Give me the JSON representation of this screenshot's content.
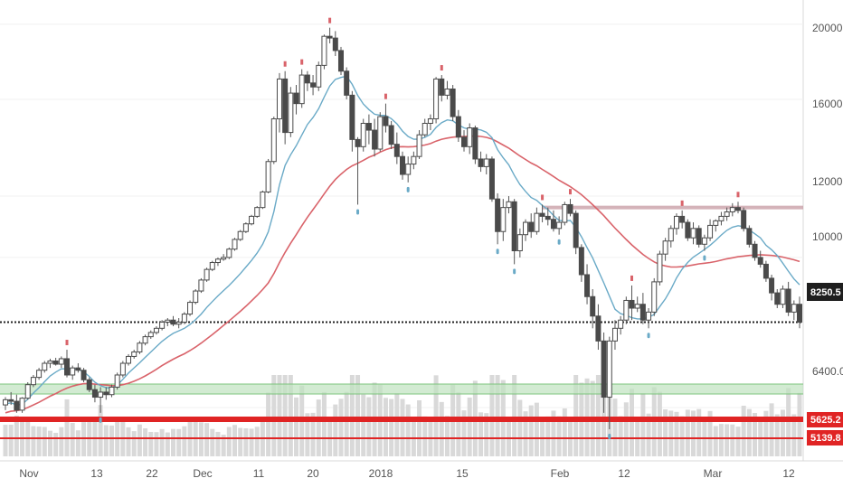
{
  "chart_data": {
    "type": "candlestick",
    "y_scale": "log",
    "ylim": [
      6000,
      21500
    ],
    "x_tick_labels": [
      "Nov",
      "13",
      "22",
      "Dec",
      "11",
      "20",
      "2018",
      "15",
      "Feb",
      "12",
      "Mar",
      "12"
    ],
    "y_tick_labels": [
      "20000.0",
      "16000.0",
      "12000.0",
      "10000.0",
      "6400.0"
    ],
    "y_tick_values": [
      20000,
      16000,
      12000,
      10000,
      6400
    ],
    "last_price": {
      "label": "8250.5",
      "value": 8250.5
    },
    "level_tags": [
      {
        "label": "5625.2"
      },
      {
        "label": "5139.8"
      }
    ],
    "resistance_level": 11600,
    "series": [
      {
        "name": "",
        "kind": "ohlc",
        "values": [
          [
            6450,
            6600,
            6350,
            6550
          ],
          [
            6550,
            6700,
            6450,
            6520
          ],
          [
            6520,
            6650,
            6300,
            6350
          ],
          [
            6350,
            6600,
            6300,
            6580
          ],
          [
            6580,
            6900,
            6550,
            6850
          ],
          [
            6850,
            7050,
            6800,
            7000
          ],
          [
            7000,
            7200,
            6950,
            7150
          ],
          [
            7150,
            7350,
            7100,
            7300
          ],
          [
            7300,
            7400,
            7200,
            7350
          ],
          [
            7350,
            7420,
            7250,
            7280
          ],
          [
            7280,
            7450,
            7200,
            7400
          ],
          [
            7400,
            7600,
            7000,
            7050
          ],
          [
            7050,
            7250,
            6950,
            7200
          ],
          [
            7200,
            7300,
            7100,
            7150
          ],
          [
            7150,
            7200,
            6900,
            6950
          ],
          [
            6950,
            7000,
            6700,
            6750
          ],
          [
            6750,
            6850,
            6500,
            6600
          ],
          [
            6600,
            6800,
            6300,
            6700
          ],
          [
            6700,
            6800,
            6550,
            6650
          ],
          [
            6650,
            6850,
            6600,
            6800
          ],
          [
            6800,
            7100,
            6750,
            7050
          ],
          [
            7050,
            7350,
            7000,
            7300
          ],
          [
            7300,
            7500,
            7250,
            7450
          ],
          [
            7450,
            7600,
            7400,
            7550
          ],
          [
            7550,
            7800,
            7500,
            7750
          ],
          [
            7750,
            7950,
            7700,
            7900
          ],
          [
            7900,
            8050,
            7850,
            8000
          ],
          [
            8000,
            8150,
            7950,
            8100
          ],
          [
            8100,
            8300,
            8050,
            8250
          ],
          [
            8250,
            8350,
            8150,
            8300
          ],
          [
            8300,
            8400,
            8150,
            8200
          ],
          [
            8200,
            8350,
            8100,
            8250
          ],
          [
            8250,
            8500,
            8200,
            8450
          ],
          [
            8450,
            8800,
            8400,
            8750
          ],
          [
            8750,
            9100,
            8700,
            9050
          ],
          [
            9050,
            9400,
            9000,
            9350
          ],
          [
            9350,
            9700,
            9300,
            9650
          ],
          [
            9650,
            9900,
            9600,
            9850
          ],
          [
            9850,
            10000,
            9750,
            9950
          ],
          [
            9950,
            10100,
            9900,
            10000
          ],
          [
            10000,
            10300,
            9950,
            10250
          ],
          [
            10250,
            10600,
            10200,
            10550
          ],
          [
            10550,
            10850,
            10500,
            10800
          ],
          [
            10800,
            11100,
            10750,
            11050
          ],
          [
            11050,
            11350,
            11000,
            11300
          ],
          [
            11300,
            11650,
            11250,
            11600
          ],
          [
            11600,
            12200,
            11550,
            12150
          ],
          [
            12150,
            13400,
            12100,
            13300
          ],
          [
            13300,
            15200,
            13200,
            15100
          ],
          [
            15100,
            17300,
            14500,
            17000
          ],
          [
            17000,
            17400,
            14000,
            14500
          ],
          [
            14500,
            16600,
            14300,
            16300
          ],
          [
            16300,
            16700,
            15300,
            15800
          ],
          [
            15800,
            17500,
            15600,
            17200
          ],
          [
            17200,
            17400,
            16400,
            16800
          ],
          [
            16800,
            17200,
            16200,
            16600
          ],
          [
            16600,
            17900,
            16400,
            17700
          ],
          [
            17700,
            19400,
            17500,
            19300
          ],
          [
            19300,
            19800,
            18900,
            19200
          ],
          [
            19200,
            19600,
            18200,
            18500
          ],
          [
            18500,
            18700,
            17200,
            17400
          ],
          [
            17400,
            17600,
            16000,
            16200
          ],
          [
            16200,
            16400,
            13700,
            14200
          ],
          [
            14200,
            14300,
            11700,
            13900
          ],
          [
            13900,
            15100,
            13700,
            14900
          ],
          [
            14900,
            15300,
            14000,
            14600
          ],
          [
            14600,
            15100,
            13500,
            13800
          ],
          [
            13800,
            15400,
            13700,
            15200
          ],
          [
            15200,
            15800,
            14500,
            14800
          ],
          [
            14800,
            15000,
            13800,
            14000
          ],
          [
            14000,
            14500,
            13200,
            13500
          ],
          [
            13500,
            13700,
            12600,
            12800
          ],
          [
            12800,
            13500,
            12500,
            13200
          ],
          [
            13200,
            13700,
            13000,
            13500
          ],
          [
            13500,
            14600,
            13400,
            14400
          ],
          [
            14400,
            15100,
            14300,
            14900
          ],
          [
            14900,
            15300,
            14600,
            15100
          ],
          [
            15100,
            17100,
            14900,
            17000
          ],
          [
            17000,
            17200,
            15900,
            16200
          ],
          [
            16200,
            16900,
            16000,
            16500
          ],
          [
            16500,
            16700,
            15000,
            15200
          ],
          [
            15200,
            15500,
            14100,
            14300
          ],
          [
            14300,
            14600,
            13700,
            13900
          ],
          [
            13900,
            14900,
            13600,
            14700
          ],
          [
            14700,
            14800,
            13200,
            13400
          ],
          [
            13400,
            13700,
            12900,
            13100
          ],
          [
            13100,
            13600,
            12800,
            13400
          ],
          [
            13400,
            13500,
            11800,
            11900
          ],
          [
            11900,
            12100,
            10400,
            10800
          ],
          [
            10800,
            11900,
            10500,
            11600
          ],
          [
            11600,
            12000,
            11400,
            11800
          ],
          [
            11800,
            11900,
            9800,
            10200
          ],
          [
            10200,
            10900,
            10000,
            10700
          ],
          [
            10700,
            11200,
            10500,
            11100
          ],
          [
            11100,
            11400,
            10600,
            10800
          ],
          [
            10800,
            11600,
            10700,
            11400
          ],
          [
            11400,
            11700,
            11100,
            11300
          ],
          [
            11300,
            11600,
            11000,
            11200
          ],
          [
            11200,
            11500,
            10800,
            10900
          ],
          [
            10900,
            11300,
            10700,
            11100
          ],
          [
            11100,
            11800,
            11000,
            11700
          ],
          [
            11700,
            11900,
            11300,
            11400
          ],
          [
            11400,
            11500,
            10100,
            10300
          ],
          [
            10300,
            10400,
            9300,
            9500
          ],
          [
            9500,
            9800,
            8700,
            8900
          ],
          [
            8900,
            9100,
            8100,
            8400
          ],
          [
            8400,
            8700,
            7600,
            7800
          ],
          [
            7800,
            8000,
            6300,
            6600
          ],
          [
            6600,
            7900,
            6000,
            7800
          ],
          [
            7800,
            8300,
            7600,
            8100
          ],
          [
            8100,
            8400,
            7950,
            8300
          ],
          [
            8300,
            8900,
            8200,
            8800
          ],
          [
            8800,
            9200,
            8300,
            8600
          ],
          [
            8600,
            8900,
            8500,
            8700
          ],
          [
            8700,
            9000,
            8200,
            8300
          ],
          [
            8300,
            8600,
            8100,
            8500
          ],
          [
            8500,
            9400,
            8400,
            9300
          ],
          [
            9300,
            10200,
            9200,
            10100
          ],
          [
            10100,
            10600,
            9900,
            10500
          ],
          [
            10500,
            11000,
            10300,
            10900
          ],
          [
            10900,
            11400,
            10700,
            11300
          ],
          [
            11300,
            11500,
            10900,
            11100
          ],
          [
            11100,
            11200,
            10500,
            10600
          ],
          [
            10600,
            11100,
            10400,
            10900
          ],
          [
            10900,
            11000,
            10300,
            10400
          ],
          [
            10400,
            10700,
            10200,
            10600
          ],
          [
            10600,
            11200,
            10500,
            11000
          ],
          [
            11000,
            11200,
            10800,
            11150
          ],
          [
            11150,
            11450,
            11000,
            11300
          ],
          [
            11300,
            11600,
            11150,
            11450
          ],
          [
            11450,
            11750,
            11300,
            11600
          ],
          [
            11600,
            11800,
            11400,
            11500
          ],
          [
            11500,
            11600,
            10800,
            10900
          ],
          [
            10900,
            11000,
            10300,
            10400
          ],
          [
            10400,
            10500,
            9900,
            10000
          ],
          [
            10000,
            10200,
            9700,
            9800
          ],
          [
            9800,
            9900,
            9300,
            9400
          ],
          [
            9400,
            9500,
            8800,
            9000
          ],
          [
            9000,
            9100,
            8600,
            8700
          ],
          [
            8700,
            9200,
            8600,
            9100
          ],
          [
            9100,
            9300,
            8400,
            8500
          ],
          [
            8500,
            8800,
            8300,
            8700
          ],
          [
            8700,
            8900,
            8100,
            8250
          ]
        ]
      },
      {
        "name": "",
        "kind": "line",
        "values": [
          6470,
          6490,
          6450,
          6460,
          6560,
          6680,
          6790,
          6910,
          7030,
          7110,
          7180,
          7180,
          7190,
          7170,
          7120,
          7020,
          6900,
          6830,
          6790,
          6780,
          6840,
          6960,
          7090,
          7200,
          7310,
          7430,
          7550,
          7670,
          7790,
          7890,
          7980,
          8040,
          8100,
          8190,
          8310,
          8450,
          8620,
          8770,
          8920,
          9060,
          9200,
          9360,
          9530,
          9720,
          9910,
          10130,
          10400,
          10790,
          11460,
          12410,
          13150,
          13570,
          13940,
          14390,
          14850,
          15160,
          15560,
          16110,
          16650,
          16980,
          17080,
          17140,
          16730,
          16190,
          15780,
          15520,
          15310,
          15260,
          15250,
          15110,
          14880,
          14560,
          14330,
          14210,
          14210,
          14290,
          14420,
          14720,
          14930,
          15050,
          15010,
          14830,
          14700,
          14640,
          14650,
          14610,
          14510,
          14280,
          13780,
          13450,
          13170,
          12760,
          12420,
          12170,
          11950,
          11850,
          11670,
          11530,
          11330,
          11160,
          11150,
          11160,
          10930,
          10630,
          10300,
          9990,
          9620,
          9270,
          8910,
          8570,
          8460,
          8420,
          8360,
          8330,
          8330,
          8370,
          8440,
          8640,
          8840,
          9100,
          9410,
          9660,
          9850,
          10010,
          10120,
          10240,
          10370,
          10520,
          10690,
          10840,
          10940,
          10990,
          10960,
          10850,
          10730,
          10600,
          10370,
          10230,
          10060,
          9830,
          9600,
          9380,
          9220
        ]
      },
      {
        "name": "",
        "kind": "line",
        "values": [
          6300,
          6330,
          6340,
          6360,
          6400,
          6450,
          6500,
          6560,
          6620,
          6670,
          6730,
          6780,
          6820,
          6850,
          6870,
          6870,
          6860,
          6850,
          6840,
          6830,
          6830,
          6850,
          6880,
          6920,
          6970,
          7030,
          7100,
          7170,
          7250,
          7320,
          7390,
          7450,
          7510,
          7580,
          7660,
          7750,
          7850,
          7950,
          8060,
          8170,
          8280,
          8400,
          8520,
          8650,
          8790,
          8930,
          9090,
          9270,
          9530,
          9850,
          10150,
          10430,
          10700,
          10990,
          11270,
          11530,
          11800,
          12080,
          12360,
          12610,
          12810,
          12990,
          13130,
          13230,
          13350,
          13470,
          13560,
          13680,
          13780,
          13850,
          13890,
          13900,
          13890,
          13900,
          13930,
          13970,
          14030,
          14130,
          14210,
          14260,
          14300,
          14320,
          14330,
          14340,
          14350,
          14330,
          14290,
          14220,
          14100,
          13970,
          13840,
          13680,
          13520,
          13380,
          13240,
          13130,
          12990,
          12860,
          12720,
          12580,
          12460,
          12340,
          12200,
          12050,
          11880,
          11700,
          11510,
          11320,
          11110,
          10910,
          10730,
          10550,
          10380,
          10230,
          10090,
          9970,
          9870,
          9790,
          9750,
          9720,
          9720,
          9730,
          9750,
          9780,
          9810,
          9830,
          9850,
          9880,
          9920,
          9960,
          9990,
          10020,
          10040,
          10060,
          10070,
          10080,
          10070,
          10060,
          10040,
          10010,
          9970,
          9930,
          9880
        ]
      }
    ]
  }
}
